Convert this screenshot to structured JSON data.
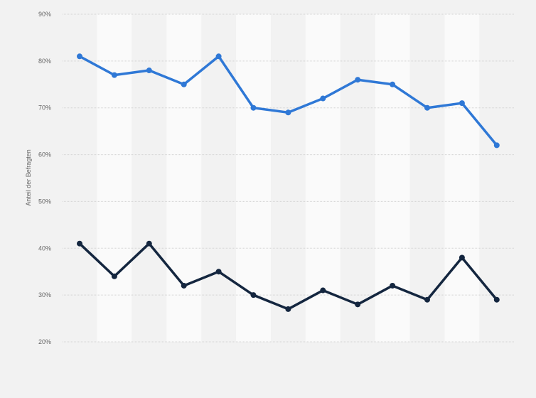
{
  "chart_data": {
    "type": "line",
    "ylabel": "Anteil der Befragten",
    "y_ticks": [
      "20%",
      "30%",
      "40%",
      "50%",
      "60%",
      "70%",
      "80%",
      "90%"
    ],
    "ylim": [
      20,
      90
    ],
    "y_tick_values": [
      20,
      30,
      40,
      50,
      60,
      70,
      80,
      90
    ],
    "x_count": 13,
    "grid": true,
    "colors": {
      "background": "#f2f2f2",
      "band": "#fafafa",
      "grid": "#d4d4d4",
      "series_1": "#2f78d6",
      "series_2": "#14263f"
    },
    "series": [
      {
        "values": [
          81,
          77,
          78,
          75,
          81,
          70,
          69,
          72,
          76,
          75,
          70,
          71,
          62
        ]
      },
      {
        "values": [
          41,
          34,
          41,
          32,
          35,
          30,
          27,
          31,
          28,
          32,
          29,
          38,
          29
        ]
      }
    ]
  }
}
